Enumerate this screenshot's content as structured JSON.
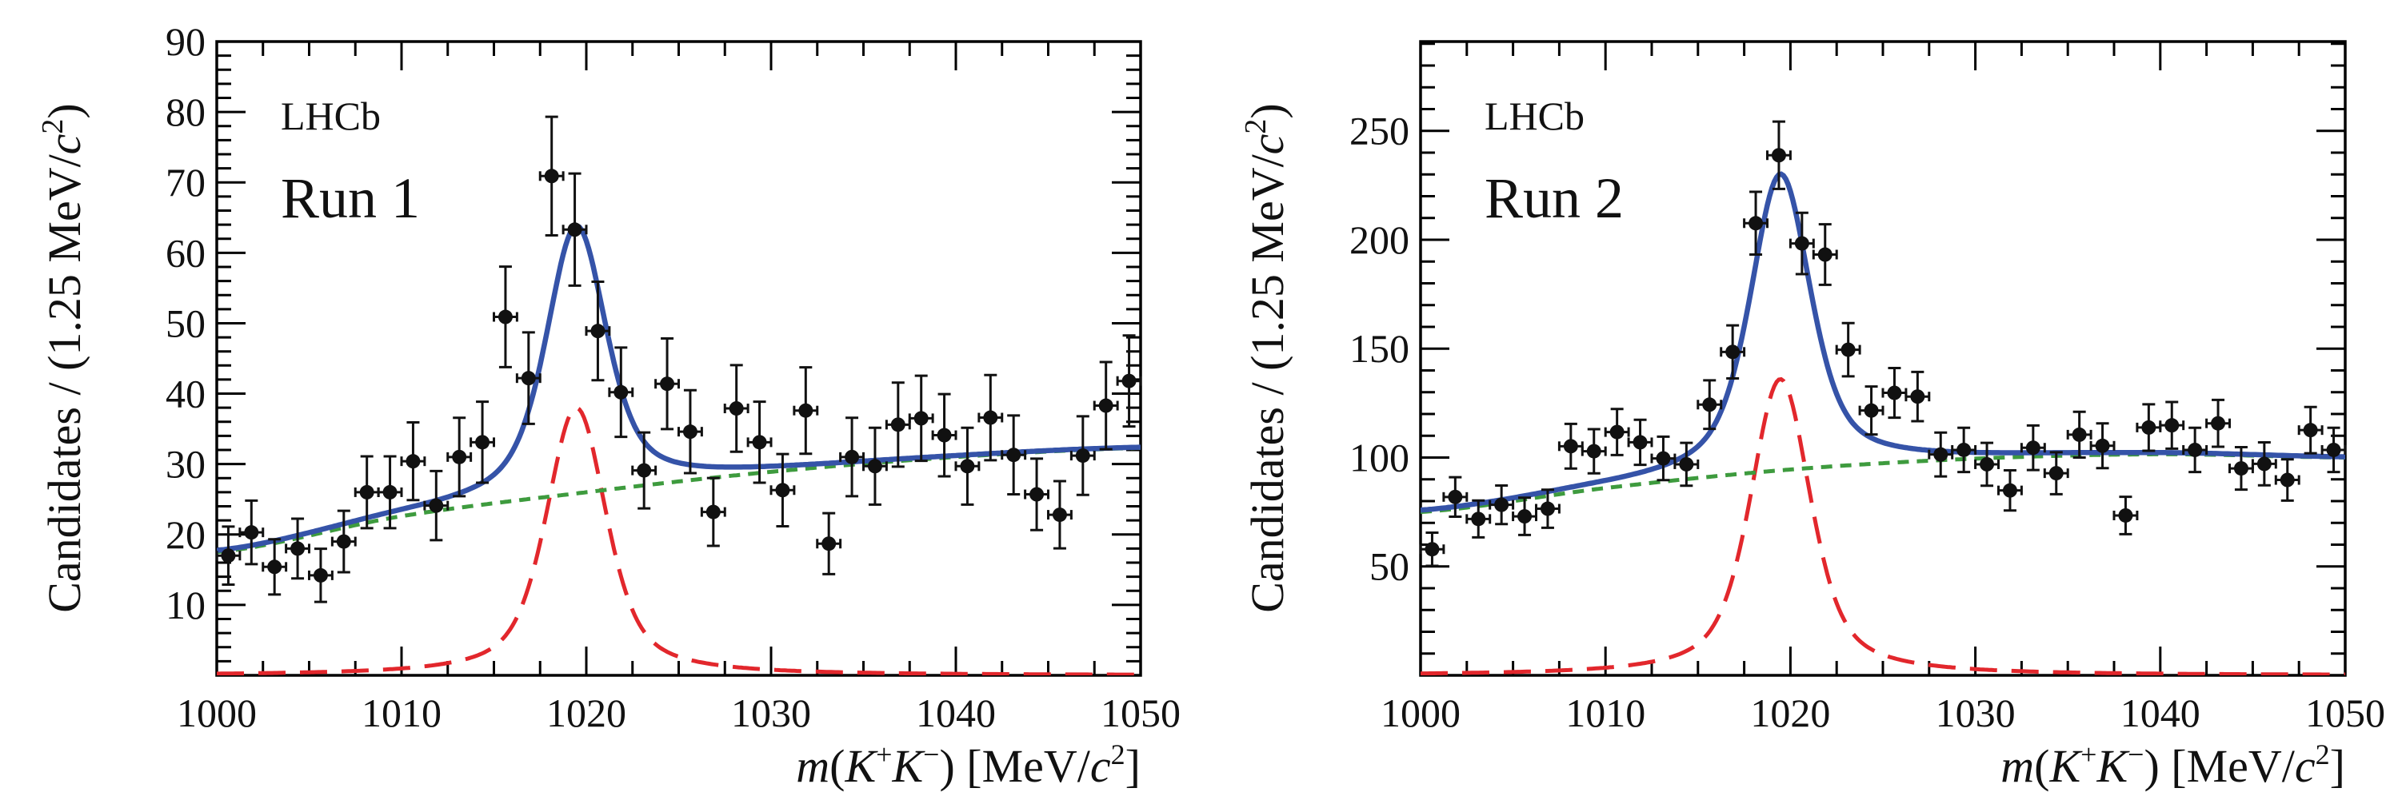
{
  "chart_data": [
    {
      "type": "scatter",
      "title": "Run 1",
      "experiment_label": "LHCb",
      "run_label": "Run 1",
      "xlabel": "m(K+K−) [MeV/c2]",
      "xlabel_parts": {
        "m": "m",
        "open": "(",
        "k1": "K",
        "sup1": "+",
        "k2": "K",
        "sup2": "−",
        "close": ")",
        "unit": " [MeV/",
        "c": "c",
        "sup3": "2",
        "end": "]"
      },
      "ylabel": "Candidates / (1.25 MeV/c2)",
      "ylabel_parts": {
        "main": "Candidates / (1.25 MeV/",
        "c": "c",
        "sup": "2",
        "end": ")"
      },
      "xlim": [
        1000,
        1050
      ],
      "ylim": [
        0,
        90
      ],
      "xticks": [
        1000,
        1010,
        1020,
        1030,
        1040,
        1050
      ],
      "xtick_labels": [
        "1000",
        "1010",
        "1020",
        "1030",
        "1040",
        "1050"
      ],
      "yticks": [
        10,
        20,
        30,
        40,
        50,
        60,
        70,
        80,
        90
      ],
      "ytick_labels": [
        "10",
        "20",
        "30",
        "40",
        "50",
        "60",
        "70",
        "80",
        "90"
      ],
      "y_minor_step": 2,
      "x_minor_step": 2.5,
      "bin_width": 1.25,
      "grid": false,
      "legend": "none",
      "colors": {
        "data": "#111111",
        "total_fit": "#3553a8",
        "signal": "#e2272c",
        "background": "#3e9b3e"
      },
      "series": [
        {
          "name": "Data",
          "style": "points-with-errorbars",
          "x": [
            1000.625,
            1001.875,
            1003.125,
            1004.375,
            1005.625,
            1006.875,
            1008.125,
            1009.375,
            1010.625,
            1011.875,
            1013.125,
            1014.375,
            1015.625,
            1016.875,
            1018.125,
            1019.375,
            1020.625,
            1021.875,
            1023.125,
            1024.375,
            1025.625,
            1026.875,
            1028.125,
            1029.375,
            1030.625,
            1031.875,
            1033.125,
            1034.375,
            1035.625,
            1036.875,
            1038.125,
            1039.375,
            1040.625,
            1041.875,
            1043.125,
            1044.375,
            1045.625,
            1046.875,
            1048.125,
            1049.375
          ],
          "y": [
            17.0,
            20.3,
            15.4,
            18.0,
            14.2,
            19.0,
            26.0,
            26.0,
            30.4,
            24.1,
            31.0,
            33.1,
            50.9,
            42.2,
            70.9,
            63.3,
            48.9,
            40.2,
            29.1,
            41.4,
            34.6,
            23.2,
            37.9,
            33.1,
            26.3,
            37.6,
            18.7,
            31.0,
            29.7,
            35.6,
            36.5,
            34.1,
            29.7,
            36.6,
            31.3,
            25.7,
            22.8,
            31.2,
            38.3,
            41.8
          ]
        },
        {
          "name": "Total fit",
          "style": "solid",
          "signal_peak": 1019.46,
          "signal_width": 4.2,
          "signal_height": 38.0,
          "background_poly": {
            "x0": 1000,
            "values_at": [
              [
                1000,
                17.5
              ],
              [
                1010,
                22.6
              ],
              [
                1020,
                26.0
              ],
              [
                1030,
                28.9
              ],
              [
                1040,
                31.0
              ],
              [
                1050,
                32.3
              ]
            ]
          }
        },
        {
          "name": "Signal",
          "style": "long-dash"
        },
        {
          "name": "Background",
          "style": "short-dash"
        }
      ]
    },
    {
      "type": "scatter",
      "title": "Run 2",
      "experiment_label": "LHCb",
      "run_label": "Run 2",
      "xlabel": "m(K+K−) [MeV/c2]",
      "xlabel_parts": {
        "m": "m",
        "open": "(",
        "k1": "K",
        "sup1": "+",
        "k2": "K",
        "sup2": "−",
        "close": ")",
        "unit": " [MeV/",
        "c": "c",
        "sup3": "2",
        "end": "]"
      },
      "ylabel": "Candidates / (1.25 MeV/c2)",
      "ylabel_parts": {
        "main": "Candidates / (1.25 MeV/",
        "c": "c",
        "sup": "2",
        "end": ")"
      },
      "xlim": [
        1000,
        1050
      ],
      "ylim": [
        0,
        291
      ],
      "xticks": [
        1000,
        1010,
        1020,
        1030,
        1040,
        1050
      ],
      "xtick_labels": [
        "1000",
        "1010",
        "1020",
        "1030",
        "1040",
        "1050"
      ],
      "yticks": [
        50,
        100,
        150,
        200,
        250
      ],
      "ytick_labels": [
        "50",
        "100",
        "150",
        "200",
        "250"
      ],
      "y_minor_step": 10,
      "x_minor_step": 2.5,
      "bin_width": 1.25,
      "grid": false,
      "legend": "none",
      "colors": {
        "data": "#111111",
        "total_fit": "#3553a8",
        "signal": "#e2272c",
        "background": "#3e9b3e"
      },
      "series": [
        {
          "name": "Data",
          "style": "points-with-errorbars",
          "x": [
            1000.625,
            1001.875,
            1003.125,
            1004.375,
            1005.625,
            1006.875,
            1008.125,
            1009.375,
            1010.625,
            1011.875,
            1013.125,
            1014.375,
            1015.625,
            1016.875,
            1018.125,
            1019.375,
            1020.625,
            1021.875,
            1023.125,
            1024.375,
            1025.625,
            1026.875,
            1028.125,
            1029.375,
            1030.625,
            1031.875,
            1033.125,
            1034.375,
            1035.625,
            1036.875,
            1038.125,
            1039.375,
            1040.625,
            1041.875,
            1043.125,
            1044.375,
            1045.625,
            1046.875,
            1048.125,
            1049.375
          ],
          "y": [
            57.9,
            81.9,
            71.8,
            78.3,
            73.0,
            76.5,
            105.2,
            102.9,
            111.7,
            107.0,
            99.6,
            96.9,
            124.3,
            148.5,
            207.6,
            238.8,
            198.3,
            193.2,
            149.5,
            121.6,
            129.7,
            128.0,
            101.4,
            103.5,
            96.9,
            84.9,
            104.5,
            92.8,
            110.5,
            105.4,
            73.4,
            113.8,
            114.8,
            103.5,
            115.7,
            95.0,
            97.1,
            89.7,
            112.6,
            103.5
          ]
        },
        {
          "name": "Total fit",
          "style": "solid",
          "signal_peak": 1019.46,
          "signal_width": 4.2,
          "signal_height": 136.0,
          "background_poly": {
            "x0": 1000,
            "values_at": [
              [
                1000,
                75.0
              ],
              [
                1010,
                86.0
              ],
              [
                1020,
                94.5
              ],
              [
                1030,
                99.5
              ],
              [
                1040,
                101.5
              ],
              [
                1050,
                100.0
              ]
            ]
          }
        },
        {
          "name": "Signal",
          "style": "long-dash"
        },
        {
          "name": "Background",
          "style": "short-dash"
        }
      ]
    }
  ]
}
